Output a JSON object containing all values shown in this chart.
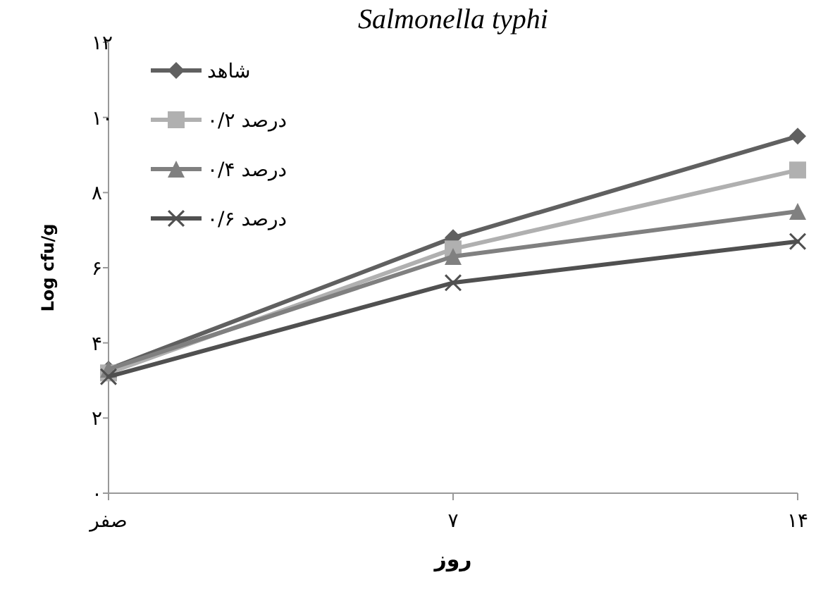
{
  "chart_data": {
    "type": "line",
    "title": "Salmonella typhi",
    "xlabel": "روز",
    "ylabel": "Log cfu/g",
    "categories": [
      "صفر",
      "۷",
      "۱۴"
    ],
    "series": [
      {
        "name": "شاهد",
        "color": "#606060",
        "marker": "diamond",
        "values": [
          3.3,
          6.8,
          9.5
        ]
      },
      {
        "name": "۰/۲ درصد",
        "color": "#b0b0b0",
        "marker": "square",
        "values": [
          3.2,
          6.5,
          8.6
        ]
      },
      {
        "name": "۰/۴ درصد",
        "color": "#808080",
        "marker": "triangle",
        "values": [
          3.3,
          6.3,
          7.5
        ]
      },
      {
        "name": "۰/۶ درصد",
        "color": "#505050",
        "marker": "cross",
        "values": [
          3.1,
          5.6,
          6.7
        ]
      }
    ],
    "ylim": [
      0,
      12
    ],
    "yticks": [
      {
        "value": 0,
        "label": "۰"
      },
      {
        "value": 2,
        "label": "۲"
      },
      {
        "value": 4,
        "label": "۴"
      },
      {
        "value": 6,
        "label": "۶"
      },
      {
        "value": 8,
        "label": "۸"
      },
      {
        "value": 10,
        "label": "۱۰"
      },
      {
        "value": 12,
        "label": "۱۲"
      }
    ],
    "grid": false,
    "legend": "top left",
    "line_style": "solid"
  }
}
